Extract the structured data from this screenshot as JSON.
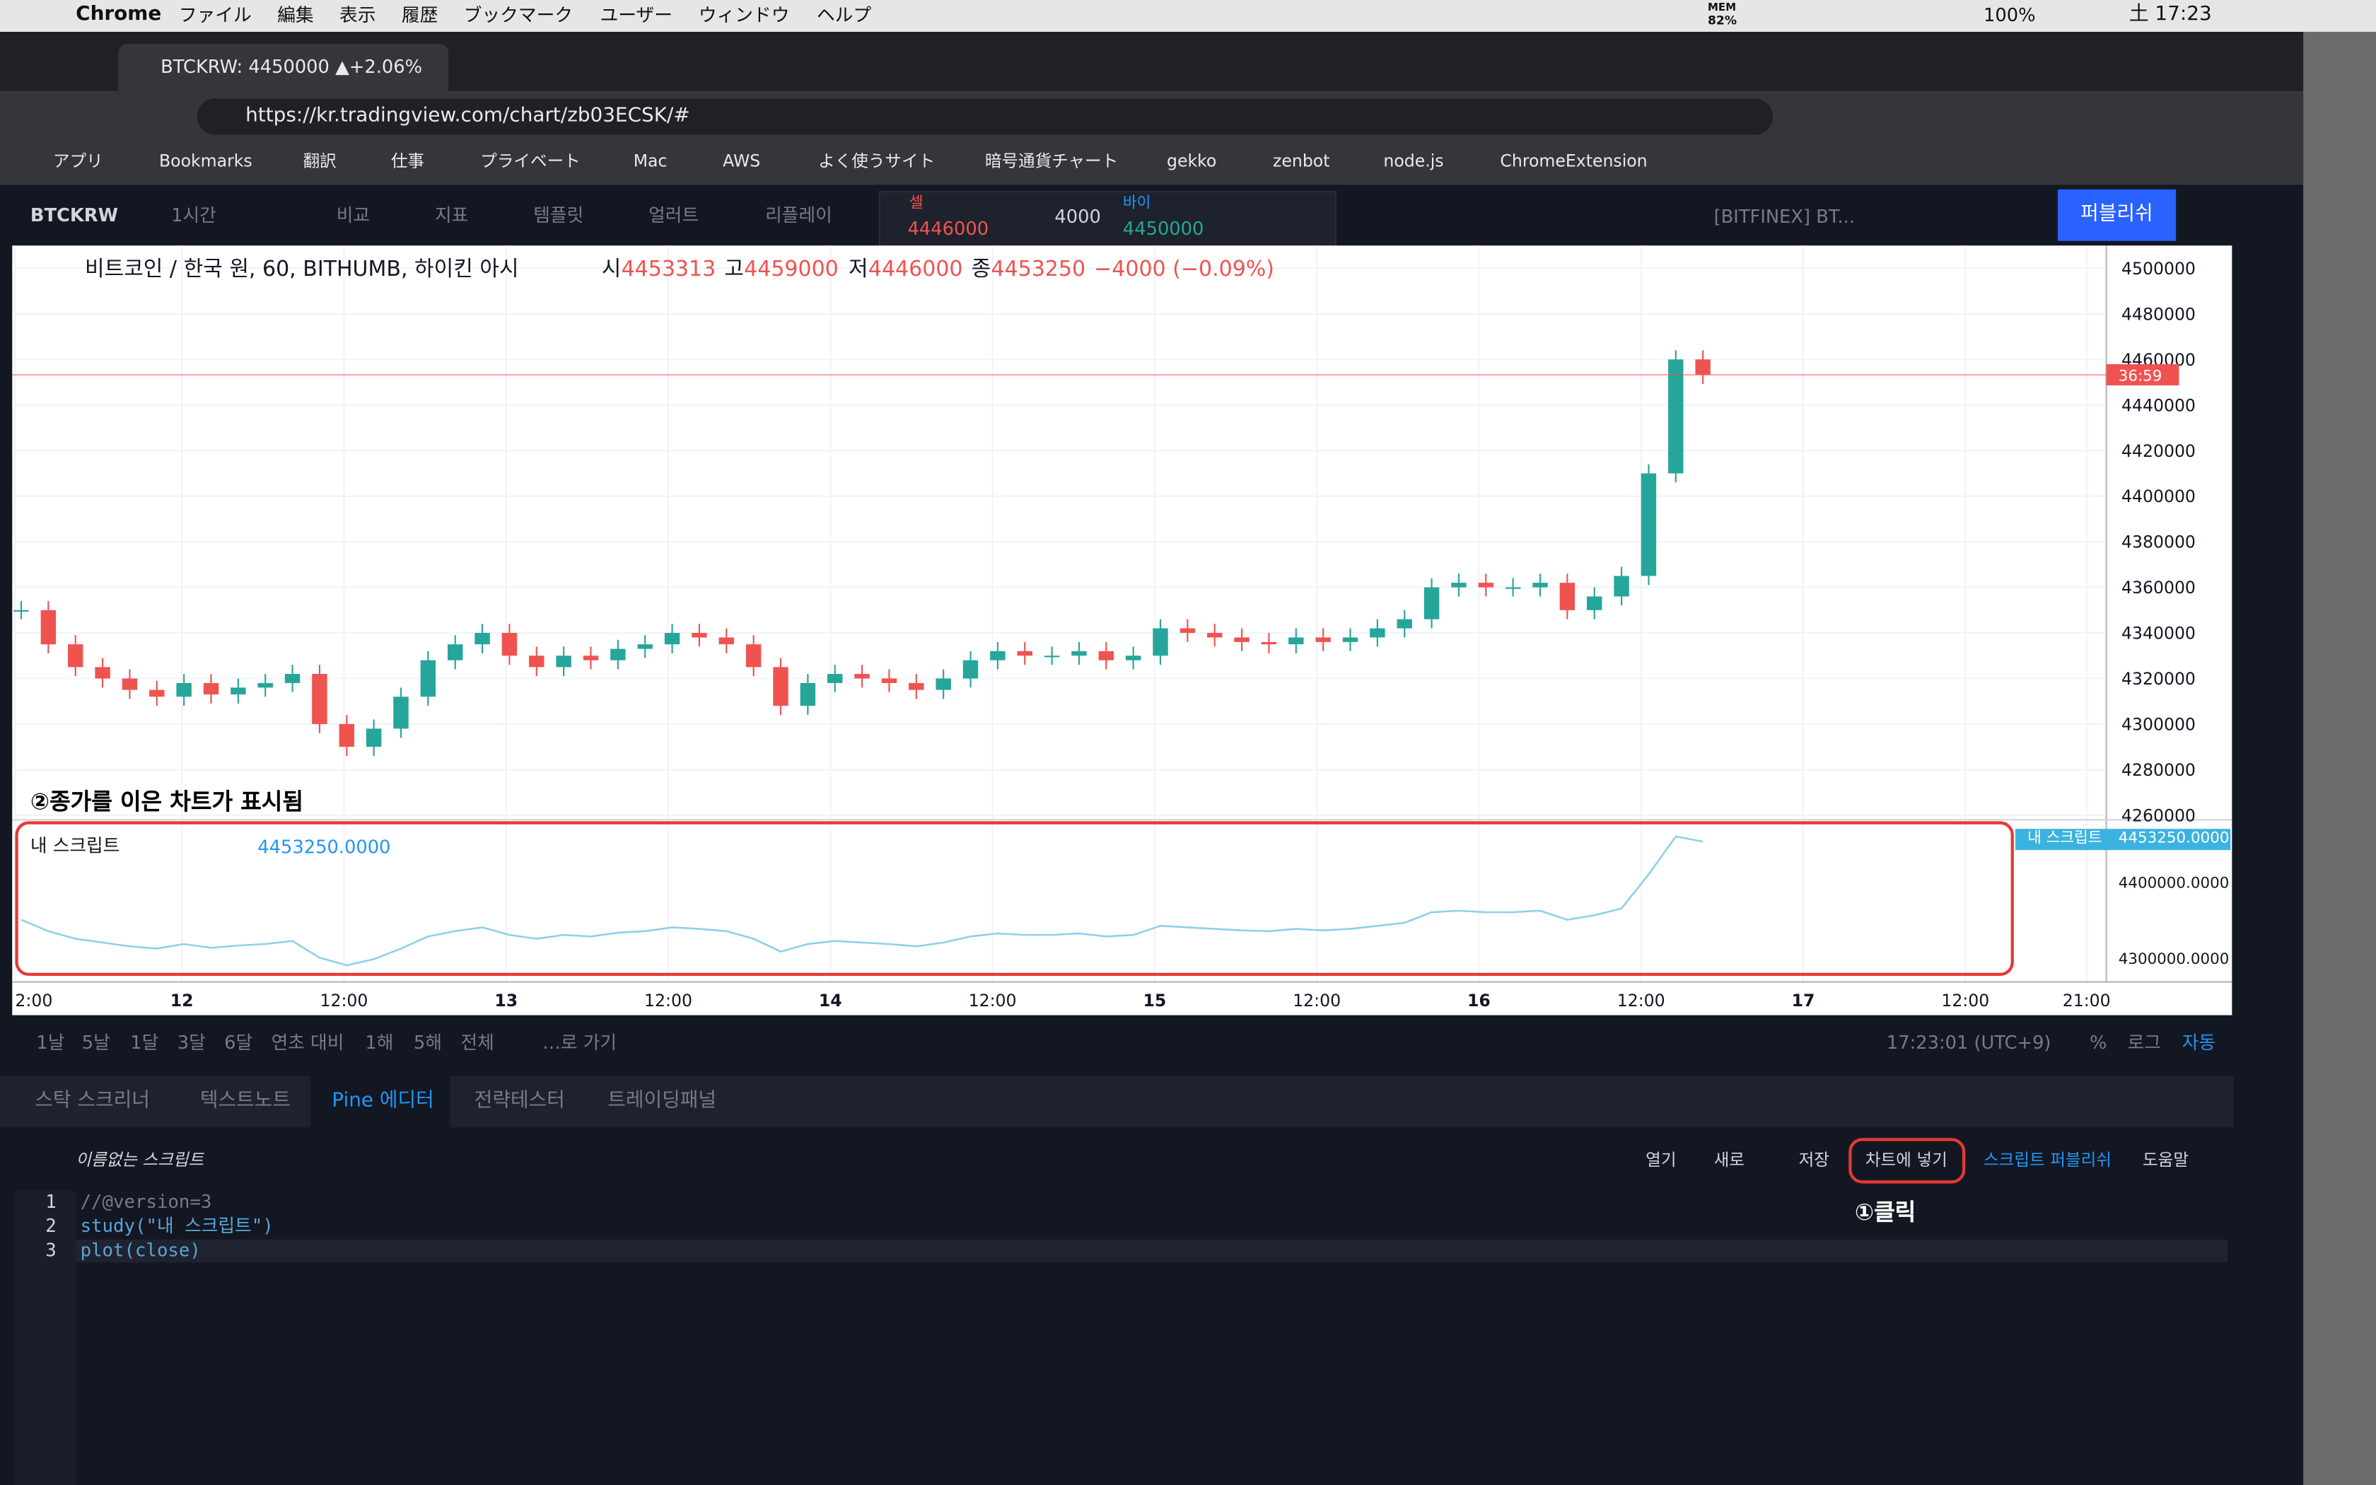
{
  "menubar": {
    "app": "Chrome",
    "menus": [
      "ファイル",
      "編集",
      "表示",
      "履歴",
      "ブックマーク",
      "ユーザー",
      "ウィンドウ",
      "ヘルプ"
    ],
    "mem": "MEM",
    "mem_pct": "82%",
    "battery": "100%",
    "time": "土 17:23"
  },
  "browser": {
    "tab_title": "BTCKRW: 4450000 ▲+2.06%",
    "url": "https://kr.tradingview.com/chart/zb03ECSK/#",
    "bookmarks": [
      "アプリ",
      "Bookmarks",
      "翻訳",
      "仕事",
      "プライベート",
      "Mac",
      "AWS",
      "よく使うサイト",
      "暗号通貨チャート",
      "gekko",
      "zenbot",
      "node.js",
      "ChromeExtension"
    ]
  },
  "toolbar": {
    "symbol": "BTCKRW",
    "interval": "1시간",
    "buttons": [
      "비교",
      "지표",
      "템플릿",
      "얼러트",
      "리플레이"
    ],
    "sell_label": "셀",
    "sell_price": "4446000",
    "spread": "4000",
    "buy_label": "바이",
    "buy_price": "4450000",
    "layout": "[BITFINEX] BT...",
    "publish": "퍼블리쉬"
  },
  "chart_legend": {
    "title": "비트코인 / 한국 원, 60, BITHUMB, 하이킨 아시",
    "o_label": "시",
    "o": "4453313",
    "h_label": "고",
    "h": "4459000",
    "l_label": "저",
    "l": "4446000",
    "c_label": "종",
    "c": "4453250",
    "change": "−4000 (−0.09%)",
    "countdown": "36:59"
  },
  "annotations": [
    "②종가를 이은 차트가 표시됨",
    "①클릭"
  ],
  "indicator": {
    "name": "내 스크립트",
    "value": "4453250.0000",
    "axis_tag": "내 스크립트",
    "axis_value": "4453250.0000"
  },
  "chart_data": [
    {
      "type": "candlestick",
      "up_color": "#26a69a",
      "down_color": "#ef5350",
      "grid": true,
      "values": [
        4350000,
        4335000,
        4325000,
        4320000,
        4315000,
        4312000,
        4318000,
        4313000,
        4316000,
        4318000,
        4322000,
        4300000,
        4290000,
        4298000,
        4312000,
        4328000,
        4335000,
        4340000,
        4330000,
        4325000,
        4330000,
        4328000,
        4333000,
        4335000,
        4340000,
        4338000,
        4335000,
        4325000,
        4308000,
        4318000,
        4322000,
        4320000,
        4318000,
        4315000,
        4320000,
        4328000,
        4332000,
        4330000,
        4330000,
        4332000,
        4328000,
        4330000,
        4342000,
        4340000,
        4338000,
        4336000,
        4335000,
        4338000,
        4336000,
        4338000,
        4342000,
        4346000,
        4360000,
        4362000,
        4360000,
        4360000,
        4362000,
        4350000,
        4356000,
        4365000,
        4410000,
        4460000,
        4453250
      ],
      "ylim": [
        4258000,
        4510000
      ],
      "yticks": [
        4260000,
        4280000,
        4300000,
        4320000,
        4340000,
        4360000,
        4380000,
        4400000,
        4420000,
        4440000,
        4460000,
        4480000,
        4500000
      ],
      "xticks": [
        "2:00",
        "12",
        "12:00",
        "13",
        "12:00",
        "14",
        "12:00",
        "15",
        "12:00",
        "16",
        "12:00",
        "17",
        "12:00",
        "21:00"
      ]
    },
    {
      "type": "line",
      "color": "#8fcfea",
      "values": [
        4350000,
        4335000,
        4325000,
        4320000,
        4315000,
        4312000,
        4318000,
        4313000,
        4316000,
        4318000,
        4322000,
        4300000,
        4290000,
        4298000,
        4312000,
        4328000,
        4335000,
        4340000,
        4330000,
        4325000,
        4330000,
        4328000,
        4333000,
        4335000,
        4340000,
        4338000,
        4335000,
        4325000,
        4308000,
        4318000,
        4322000,
        4320000,
        4318000,
        4315000,
        4320000,
        4328000,
        4332000,
        4330000,
        4330000,
        4332000,
        4328000,
        4330000,
        4342000,
        4340000,
        4338000,
        4336000,
        4335000,
        4338000,
        4336000,
        4338000,
        4342000,
        4346000,
        4360000,
        4362000,
        4360000,
        4360000,
        4362000,
        4350000,
        4356000,
        4365000,
        4410000,
        4460000,
        4453250
      ],
      "ylim": [
        4274000,
        4474000
      ],
      "yticks": [
        {
          "value": 4300000,
          "label": "4300000.0000"
        },
        {
          "value": 4400000,
          "label": "4400000.0000"
        }
      ]
    }
  ],
  "range_bar": {
    "ranges": [
      "1날",
      "5날",
      "1달",
      "3달",
      "6달",
      "연초 대비",
      "1해",
      "5해",
      "전체"
    ],
    "goto": "…로 가기",
    "clock": "17:23:01 (UTC+9)",
    "percent": "%",
    "log": "로그",
    "auto": "자동"
  },
  "panel_tabs": [
    "스탁 스크리너",
    "텍스트노트",
    "Pine 에디터",
    "전략테스터",
    "트레이딩패널"
  ],
  "editor": {
    "name": "이름없는 스크립트",
    "buttons": [
      "열기",
      "새로",
      "저장",
      "차트에 넣기",
      "스크립트 퍼블리쉬",
      "도움말"
    ],
    "line_numbers": [
      "1",
      "2",
      "3"
    ],
    "code": [
      "//@version=3",
      "study(\"내 스크립트\")",
      "plot(close)"
    ]
  }
}
